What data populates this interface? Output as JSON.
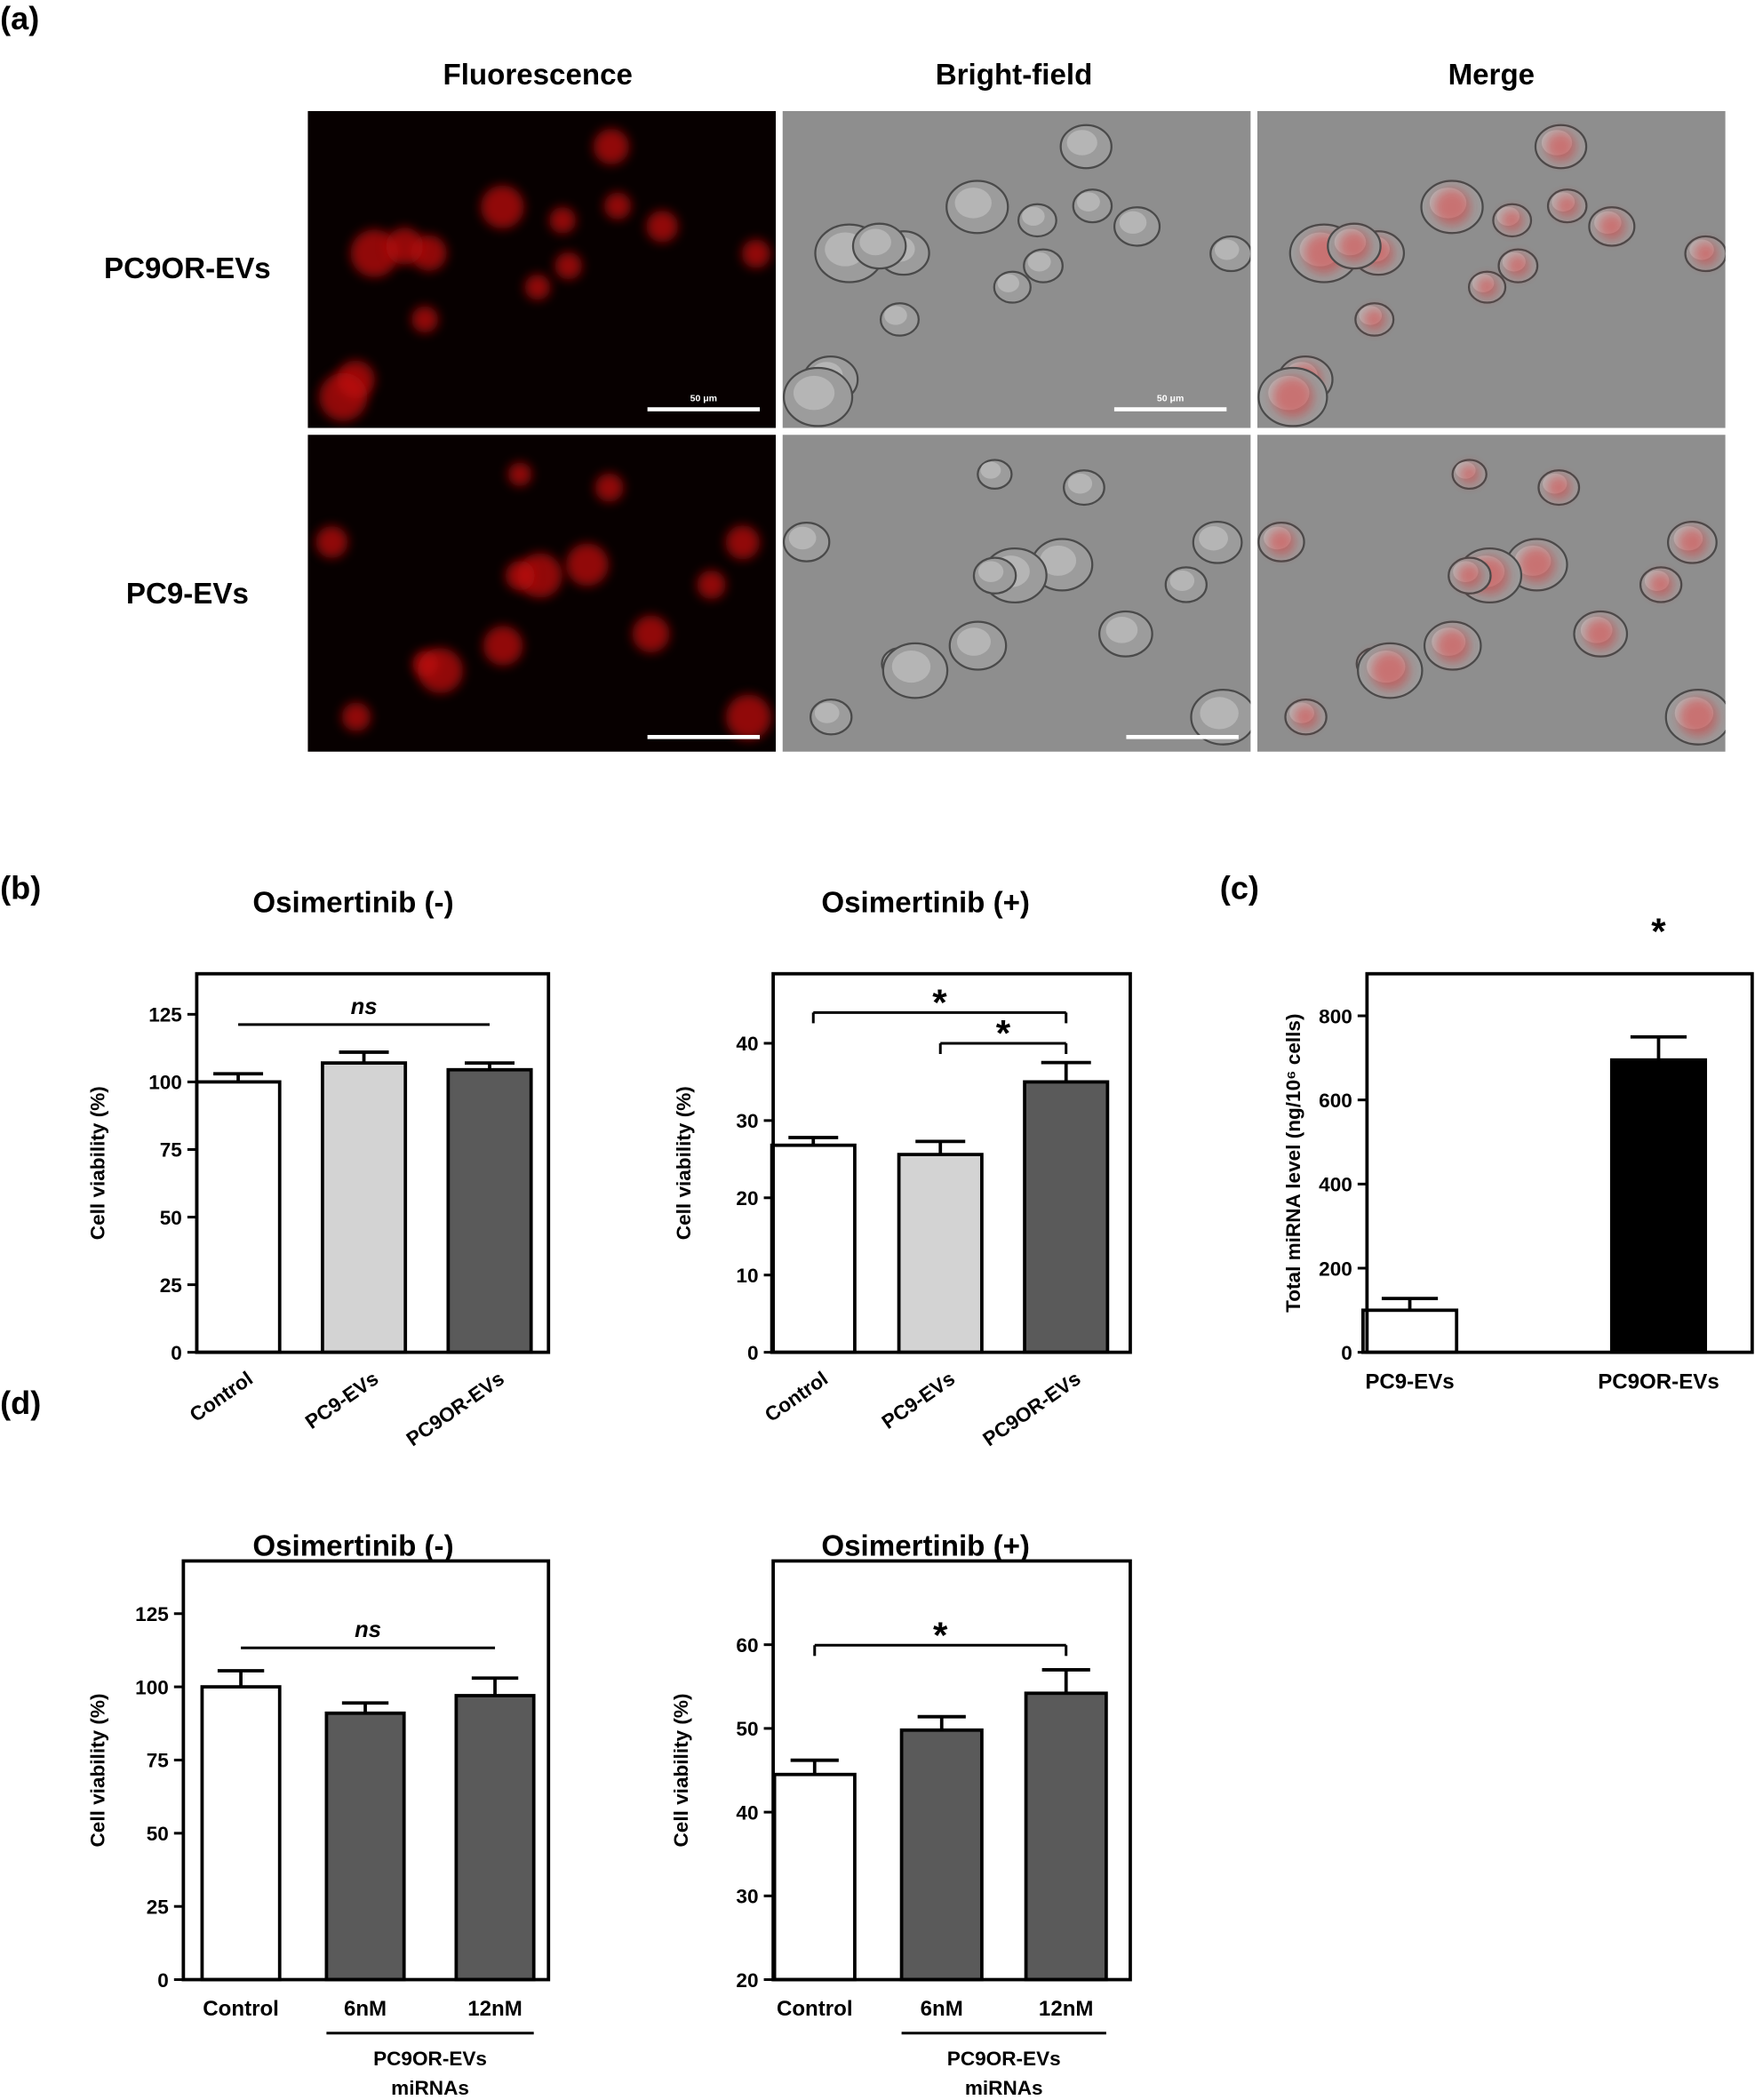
{
  "panel_a": {
    "label": "(a)",
    "columns": [
      "Fluorescence",
      "Bright-field",
      "Merge"
    ],
    "rows": [
      "PC9OR-EVs",
      "PC9-EVs"
    ],
    "scale_bar_labels": [
      "50 μm",
      "50 μm"
    ]
  },
  "chart_data": [
    {
      "type": "bar",
      "panel": "(b)",
      "title": "Osimertinib (-)",
      "y_label": "Cell viability (%)",
      "categories": [
        "Control",
        "PC9-EVs",
        "PC9OR-EVs"
      ],
      "values": [
        100,
        107,
        104.5
      ],
      "errors": [
        3,
        4,
        2.5
      ],
      "colors": [
        "#ffffff",
        "#d3d3d3",
        "#5a5a5a"
      ],
      "ylim": [
        0,
        140
      ],
      "yticks": [
        0,
        25,
        50,
        75,
        100,
        125
      ],
      "annotations": [
        "ns"
      ]
    },
    {
      "type": "bar",
      "title": "Osimertinib (+)",
      "y_label": "Cell viability (%)",
      "categories": [
        "Control",
        "PC9-EVs",
        "PC9OR-EVs"
      ],
      "values": [
        26.8,
        25.6,
        35
      ],
      "errors": [
        1,
        1.7,
        2.5
      ],
      "colors": [
        "#ffffff",
        "#d3d3d3",
        "#5a5a5a"
      ],
      "ylim": [
        0,
        49
      ],
      "yticks": [
        0,
        10,
        20,
        30,
        40
      ],
      "annotations": [
        "*",
        "*"
      ]
    },
    {
      "type": "bar",
      "panel": "(c)",
      "y_label": "Total miRNA level (ng/10⁶ cells)",
      "categories": [
        "PC9-EVs",
        "PC9OR-EVs"
      ],
      "values": [
        100,
        695
      ],
      "errors": [
        28,
        55
      ],
      "colors": [
        "#ffffff",
        "#000000"
      ],
      "ylim": [
        0,
        900
      ],
      "yticks": [
        0,
        200,
        400,
        600,
        800
      ],
      "annotations": [
        "*"
      ]
    },
    {
      "type": "bar",
      "panel": "(d)",
      "title": "Osimertinib (-)",
      "y_label": "Cell viability (%)",
      "categories": [
        "Control",
        "6nM",
        "12nM"
      ],
      "values": [
        100,
        91,
        97
      ],
      "errors": [
        5.5,
        3.5,
        6
      ],
      "colors": [
        "#ffffff",
        "#5a5a5a",
        "#5a5a5a"
      ],
      "ylim": [
        0,
        143
      ],
      "yticks": [
        0,
        25,
        50,
        75,
        100,
        125
      ],
      "annotations": [
        "ns"
      ],
      "group_label": [
        "PC9OR-EVs",
        "miRNAs"
      ]
    },
    {
      "type": "bar",
      "title": "Osimertinib (+)",
      "y_label": "Cell viability (%)",
      "categories": [
        "Control",
        "6nM",
        "12nM"
      ],
      "values": [
        44.5,
        49.8,
        54.2
      ],
      "errors": [
        1.7,
        1.6,
        2.8
      ],
      "colors": [
        "#ffffff",
        "#5a5a5a",
        "#5a5a5a"
      ],
      "ylim": [
        20,
        70
      ],
      "yticks": [
        20,
        30,
        40,
        50,
        60
      ],
      "annotations": [
        "*"
      ],
      "group_label": [
        "PC9OR-EVs",
        "miRNAs"
      ]
    }
  ]
}
